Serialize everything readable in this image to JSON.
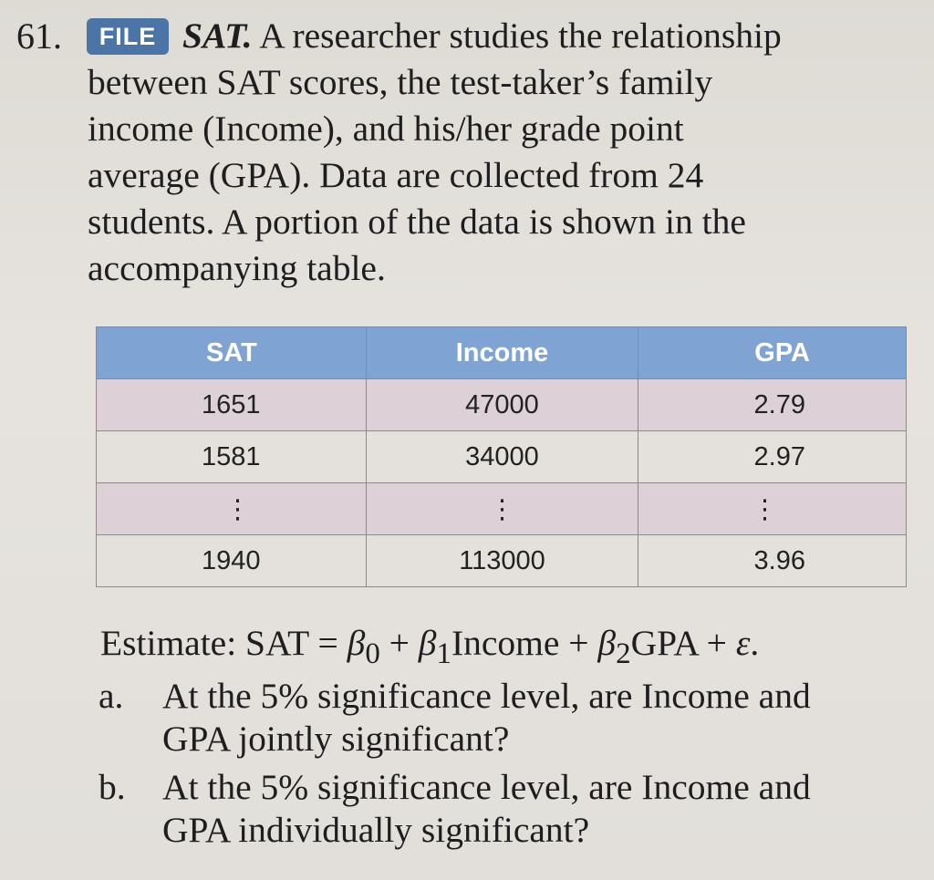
{
  "question": {
    "number": "61.",
    "badge": "FILE",
    "title": "SAT.",
    "lines": [
      "A researcher studies the relationship",
      "between SAT scores, the test-taker’s family",
      "income (Income), and his/her grade point",
      "average (GPA). Data are collected from 24",
      "students. A portion of the data is shown in the",
      "accompanying table."
    ]
  },
  "table": {
    "headers": [
      "SAT",
      "Income",
      "GPA"
    ],
    "rows": [
      [
        "1651",
        "47000",
        "2.79"
      ],
      [
        "1581",
        "34000",
        "2.97"
      ],
      [
        "⋮",
        "⋮",
        "⋮"
      ],
      [
        "1940",
        "113000",
        "3.96"
      ]
    ]
  },
  "estimate": {
    "prefix": "Estimate: SAT = ",
    "b0": "β",
    "b0sub": "0",
    "plus1": " + ",
    "b1": "β",
    "b1sub": "1",
    "income": "Income",
    "plus2": " + ",
    "b2": "β",
    "b2sub": "2",
    "gpa": "GPA",
    "plus3": " + ",
    "eps": "ε",
    "end": "."
  },
  "parts": [
    {
      "label": "a.",
      "lines": [
        "At the 5% significance level, are Income and",
        "GPA jointly significant?"
      ]
    },
    {
      "label": "b.",
      "lines": [
        "At the 5% significance level, are Income and",
        "GPA individually significant?"
      ]
    }
  ]
}
